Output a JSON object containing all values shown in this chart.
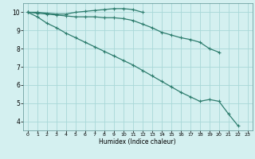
{
  "xlabel": "Humidex (Indice chaleur)",
  "x_values": [
    0,
    1,
    2,
    3,
    4,
    5,
    6,
    7,
    8,
    9,
    10,
    11,
    12,
    13,
    14,
    15,
    16,
    17,
    18,
    19,
    20,
    21,
    22,
    23
  ],
  "line1": [
    10.0,
    10.0,
    9.95,
    9.9,
    9.9,
    10.0,
    10.05,
    10.1,
    10.15,
    10.2,
    10.2,
    10.15,
    10.0,
    null,
    null,
    null,
    null,
    null,
    null,
    null,
    null,
    null,
    null,
    null
  ],
  "line2": [
    10.0,
    9.95,
    9.9,
    9.85,
    9.8,
    9.75,
    9.75,
    9.75,
    9.7,
    9.7,
    9.65,
    9.55,
    9.35,
    9.15,
    8.9,
    8.75,
    8.6,
    8.5,
    8.35,
    8.0,
    7.8,
    null,
    null,
    null
  ],
  "line3": [
    10.0,
    9.75,
    9.4,
    9.15,
    8.85,
    8.6,
    8.35,
    8.1,
    7.85,
    7.6,
    7.35,
    7.1,
    6.8,
    6.5,
    6.2,
    5.9,
    5.6,
    5.35,
    5.1,
    5.2,
    5.1,
    4.4,
    3.75,
    null
  ],
  "line_color": "#2e7d6e",
  "bg_color": "#d4f0f0",
  "grid_color": "#a8d8d8",
  "ylim": [
    3.5,
    10.5
  ],
  "xlim": [
    -0.5,
    23.5
  ],
  "yticks": [
    4,
    5,
    6,
    7,
    8,
    9,
    10
  ],
  "xticks": [
    0,
    1,
    2,
    3,
    4,
    5,
    6,
    7,
    8,
    9,
    10,
    11,
    12,
    13,
    14,
    15,
    16,
    17,
    18,
    19,
    20,
    21,
    22,
    23
  ]
}
